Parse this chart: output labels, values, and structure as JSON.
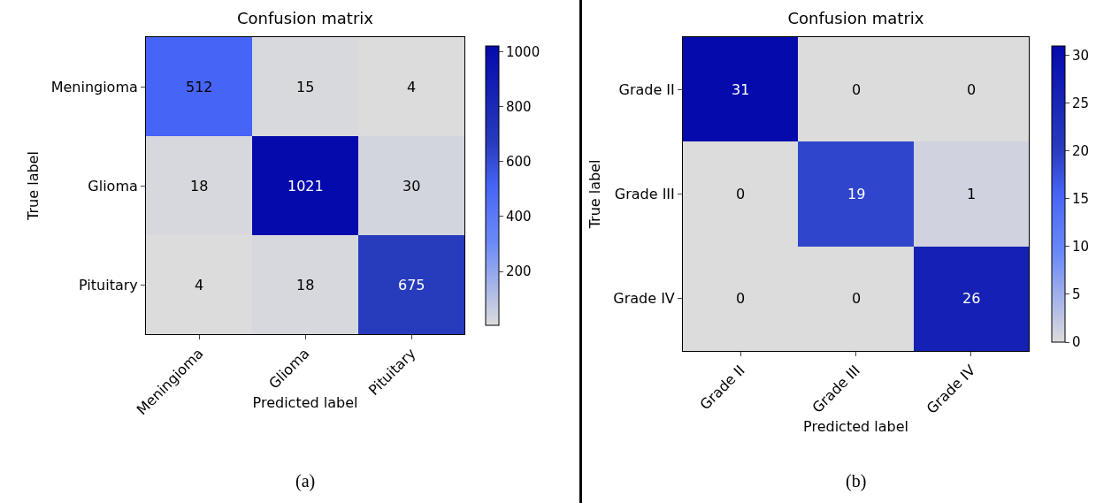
{
  "chart_data": [
    {
      "type": "heatmap",
      "title": "Confusion matrix",
      "xlabel": "Predicted label",
      "ylabel": "True label",
      "categories": [
        "Meningioma",
        "Glioma",
        "Pituitary"
      ],
      "y_categories": [
        "Meningioma",
        "Glioma",
        "Pituitary"
      ],
      "cells": [
        [
          512,
          15,
          4
        ],
        [
          18,
          1021,
          30
        ],
        [
          4,
          18,
          675
        ]
      ],
      "clim": [
        4,
        1021
      ],
      "cticks": [
        200,
        400,
        600,
        800,
        1000
      ],
      "data_labels": true,
      "annotations": [
        "(a)"
      ]
    },
    {
      "type": "heatmap",
      "title": "Confusion matrix",
      "xlabel": "Predicted label",
      "ylabel": "True label",
      "categories": [
        "Grade II",
        "Grade III",
        "Grade IV"
      ],
      "y_categories": [
        "Grade II",
        "Grade III",
        "Grade IV"
      ],
      "cells": [
        [
          31,
          0,
          0
        ],
        [
          0,
          19,
          1
        ],
        [
          0,
          0,
          26
        ]
      ],
      "clim": [
        0,
        31
      ],
      "cticks": [
        0,
        5,
        10,
        15,
        20,
        25,
        30
      ],
      "data_labels": true,
      "annotations": [
        "(b)"
      ]
    }
  ]
}
